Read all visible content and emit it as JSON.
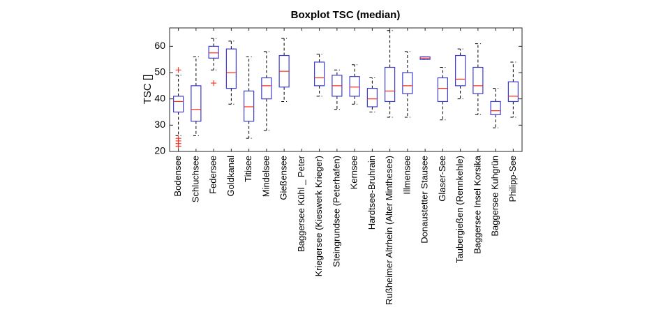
{
  "chart_data": {
    "type": "boxplot",
    "title": "Boxplot TSC  (median)",
    "y_label": "TSC []",
    "categories": [
      "Bodensee",
      "Schluchsee",
      "Federsee",
      "Goldkanal",
      "Titisee",
      "Mindelsee",
      "Gießensee",
      "Baggersee Kühl _ Peter",
      "Kriegersee (Kieswerk Krieger)",
      "Steingrundsee (Peterhafen)",
      "Kernsee",
      "Hardtsee-Bruhrain",
      "Rußheimer Altrhein  (Alter Minthesee)",
      "Illmensee",
      "Donaustetter Stausee",
      "Glaser-See",
      "Taubergießen (Rennkehle)",
      "Baggersee Insel Korsika",
      "Baggersee Kuhgrün",
      "Philipp-See"
    ],
    "whisker_low": [
      26,
      26,
      51,
      38,
      25,
      28,
      39,
      null,
      41,
      36,
      38,
      35,
      33,
      33,
      55,
      32,
      40,
      34,
      29,
      33
    ],
    "q1": [
      35,
      31.5,
      55.5,
      44,
      31.5,
      40,
      44.5,
      null,
      45,
      41,
      41,
      37,
      39,
      42,
      55,
      39,
      45,
      42,
      34,
      39
    ],
    "median": [
      39,
      36,
      57.5,
      50,
      37,
      45,
      50.5,
      null,
      48,
      45,
      44.5,
      40,
      43,
      45,
      55.5,
      44,
      47.5,
      45,
      35.5,
      41
    ],
    "q3": [
      41,
      45,
      60,
      59,
      43,
      48,
      56.5,
      null,
      54,
      49,
      48.5,
      44,
      52,
      50,
      56,
      48,
      56.5,
      52,
      39,
      46.5
    ],
    "whisker_high": [
      49,
      56,
      63,
      62,
      56,
      58,
      63,
      null,
      57,
      51,
      53,
      48,
      66,
      58,
      56,
      52,
      59,
      61,
      44,
      54
    ],
    "outliers": [
      [
        51,
        25,
        24,
        23,
        22
      ],
      [],
      [
        46
      ],
      [],
      [],
      [],
      [],
      [],
      [],
      [],
      [],
      [],
      [],
      [],
      [],
      [],
      [],
      [],
      [],
      []
    ],
    "box_color": "#3c3cd0",
    "median_color": "#ff2a1a",
    "whisker_color": "#000000",
    "outlier_color": "#ff2a1a",
    "xlim": [
      0.5,
      20.5
    ],
    "ylim": [
      20,
      67
    ],
    "yticks": [
      20,
      30,
      40,
      50,
      60
    ]
  }
}
